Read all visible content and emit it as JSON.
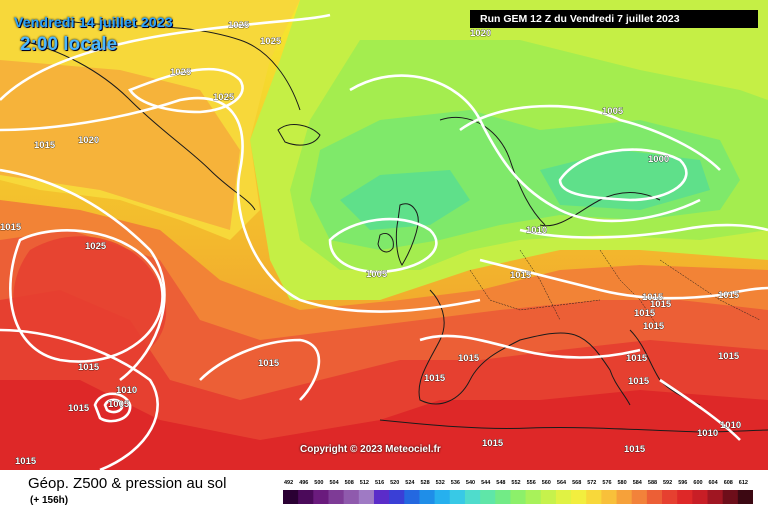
{
  "header": {
    "valid_date": "Vendredi 14 juillet 2023",
    "local_time": "2:00 locale",
    "run_info": "Run GEM 12 Z du Vendredi 7 juillet 2023"
  },
  "map": {
    "copyright": "Copyright © 2023 Meteociel.fr",
    "isobar_labels": [
      "1025",
      "1025",
      "1025",
      "1025",
      "1020",
      "1015",
      "1020",
      "1015",
      "1025",
      "1015",
      "1005",
      "1005",
      "1000",
      "1010",
      "1015",
      "1015",
      "1015",
      "1015",
      "1015",
      "1015",
      "1015",
      "1015",
      "1015",
      "1010",
      "1005",
      "1015",
      "1015",
      "1015",
      "1015",
      "1015",
      "1015",
      "1010",
      "1010",
      "1015"
    ]
  },
  "legend": {
    "title": "Géop. Z500 & pression au sol",
    "lead": "(+ 156h)",
    "scale_values": [
      "492",
      "496",
      "500",
      "504",
      "508",
      "512",
      "516",
      "520",
      "524",
      "528",
      "532",
      "536",
      "540",
      "544",
      "548",
      "552",
      "556",
      "560",
      "564",
      "568",
      "572",
      "576",
      "580",
      "584",
      "588",
      "592",
      "596",
      "600",
      "604",
      "608",
      "612"
    ],
    "scale_colors": [
      "#2a0033",
      "#4b0a5a",
      "#6a1b7d",
      "#7e3b96",
      "#8f5aad",
      "#9f7ac4",
      "#5b2cc9",
      "#3a3fd6",
      "#2468e0",
      "#1f8ee8",
      "#26b0ee",
      "#38c9e6",
      "#4fdccc",
      "#5fe6a8",
      "#72eb86",
      "#8cf06a",
      "#a8f25a",
      "#c6f24c",
      "#e0f244",
      "#f2ee3e",
      "#f8d83a",
      "#f8c03a",
      "#f6a13a",
      "#f2823a",
      "#ec5f36",
      "#e64030",
      "#de2828",
      "#c81e26",
      "#a01622",
      "#6e0e1a",
      "#3c0812"
    ]
  }
}
